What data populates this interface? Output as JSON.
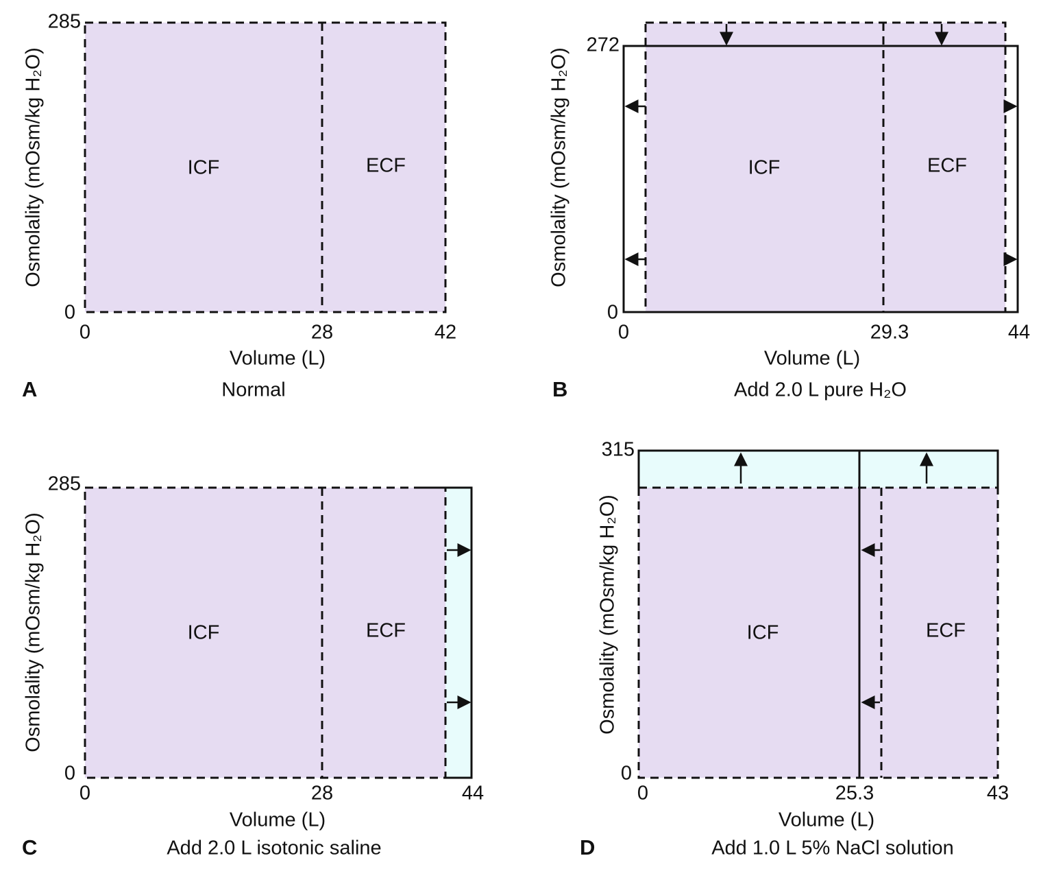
{
  "panels": [
    {
      "letter": "A",
      "caption": "Normal",
      "y_label": "Osmolality (mOsm/kg H₂O)",
      "x_label": "Volume (L)",
      "yticks": [
        "285",
        "0"
      ],
      "xticks": [
        "0",
        "28",
        "42"
      ],
      "regions": [
        "ICF",
        "ECF"
      ]
    },
    {
      "letter": "B",
      "caption": "Add 2.0 L pure H₂O",
      "y_label": "Osmolality (mOsm/kg H₂O)",
      "x_label": "Volume (L)",
      "yticks": [
        "272",
        "0"
      ],
      "xticks": [
        "0",
        "29.3",
        "44"
      ],
      "regions": [
        "ICF",
        "ECF"
      ]
    },
    {
      "letter": "C",
      "caption": "Add 2.0 L isotonic saline",
      "y_label": "Osmolality (mOsm/kg H₂O)",
      "x_label": "Volume (L)",
      "yticks": [
        "285",
        "0"
      ],
      "xticks": [
        "0",
        "28",
        "44"
      ],
      "regions": [
        "ICF",
        "ECF"
      ]
    },
    {
      "letter": "D",
      "caption": "Add 1.0 L 5% NaCl solution",
      "y_label": "Osmolality (mOsm/kg H₂O)",
      "x_label": "Volume (L)",
      "yticks": [
        "315",
        "0"
      ],
      "xticks": [
        "0",
        "25.3",
        "43"
      ],
      "regions": [
        "ICF",
        "ECF"
      ]
    }
  ]
}
